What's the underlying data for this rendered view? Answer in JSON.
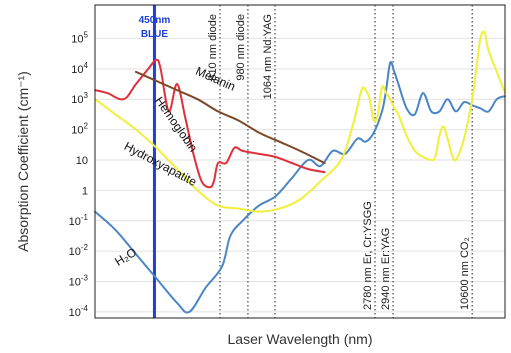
{
  "chart_data": {
    "type": "line",
    "title": "",
    "xlabel": "Laser Wavelength (nm)",
    "ylabel": "Absorption Coefficient (cm⁻¹)",
    "y_scale": "log",
    "y_ticks": [
      {
        "base": "10",
        "exp": "5"
      },
      {
        "base": "10",
        "exp": "4"
      },
      {
        "base": "10",
        "exp": "3"
      },
      {
        "base": "10",
        "exp": "2"
      },
      {
        "base": "10",
        "exp": ""
      },
      {
        "base": "1",
        "exp": ""
      },
      {
        "base": "10",
        "exp": "-1"
      },
      {
        "base": "10",
        "exp": "-2"
      },
      {
        "base": "10",
        "exp": "-3"
      },
      {
        "base": "10",
        "exp": "-4"
      }
    ],
    "y_tick_values": [
      5,
      4,
      3,
      2,
      1,
      0,
      -1,
      -2,
      -3,
      -4
    ],
    "ylim_log10": [
      -4.2,
      6.1
    ],
    "x_domain": [
      0,
      100
    ],
    "grid": true,
    "blue_line": {
      "x": 14.5,
      "label_lines": [
        "450nm",
        "BLUE"
      ],
      "color": "#1f3fd6"
    },
    "laser_lines": [
      {
        "x": 30.5,
        "label": "810 nm  diode",
        "label_pos": "top"
      },
      {
        "x": 37.3,
        "label": "980 nm diode",
        "label_pos": "top"
      },
      {
        "x": 43.9,
        "label": "1064 nm Nd:YAG",
        "label_pos": "top"
      },
      {
        "x": 68.3,
        "label": "2780 nm Er, Cr:YSGG",
        "label_pos": "bottom"
      },
      {
        "x": 72.7,
        "label": "2940 nm Er:YAG",
        "label_pos": "bottom"
      },
      {
        "x": 92.0,
        "label": "10600 nm CO₂",
        "label_pos": "bottom"
      }
    ],
    "series": [
      {
        "name": "H₂O",
        "color": "#4a86c5",
        "x": [
          0,
          5,
          10,
          15,
          20,
          23,
          27,
          31,
          33,
          36,
          40,
          44,
          48,
          52,
          55,
          58,
          61,
          64,
          66,
          68,
          70,
          71,
          72,
          73,
          74,
          76,
          78,
          80,
          82,
          84,
          86,
          88,
          90,
          92,
          94,
          96,
          98,
          100
        ],
        "y": [
          -0.7,
          -1.3,
          -2.1,
          -2.9,
          -3.7,
          -4.0,
          -3.2,
          -2.5,
          -1.5,
          -1.0,
          -0.5,
          -0.2,
          0.4,
          1.0,
          0.8,
          1.3,
          1.2,
          1.7,
          1.6,
          1.9,
          2.6,
          3.3,
          4.2,
          3.9,
          3.5,
          2.7,
          2.5,
          3.2,
          2.6,
          2.6,
          3.0,
          2.6,
          2.9,
          2.8,
          2.7,
          2.6,
          3.0,
          3.1
        ]
      },
      {
        "name": "Hydroxyapatite",
        "color": "#f2ef3a",
        "x": [
          0,
          5,
          10,
          15,
          20,
          25,
          30,
          35,
          40,
          45,
          50,
          55,
          60,
          63,
          65,
          66,
          67,
          68,
          69,
          70,
          71,
          72,
          73,
          74,
          76,
          78,
          80,
          82,
          83,
          84,
          85,
          86,
          87,
          88,
          90,
          92,
          93,
          94,
          95,
          96,
          98,
          100
        ],
        "y": [
          3.0,
          2.5,
          2.0,
          1.4,
          0.7,
          0.0,
          -0.5,
          -0.6,
          -0.7,
          -0.6,
          -0.3,
          0.3,
          1.0,
          2.2,
          3.3,
          3.3,
          3.0,
          2.3,
          2.5,
          3.4,
          3.2,
          3.0,
          2.7,
          2.5,
          1.8,
          1.3,
          1.1,
          1.0,
          1.1,
          1.8,
          2.1,
          1.7,
          1.2,
          1.0,
          1.7,
          3.0,
          4.0,
          5.0,
          5.2,
          4.6,
          3.9,
          3.2
        ]
      },
      {
        "name": "Hemoglobin",
        "color": "#e0303a",
        "x": [
          0,
          3,
          7,
          10,
          13,
          15,
          16,
          18,
          20,
          22,
          24,
          26,
          28,
          29,
          30,
          32,
          34,
          36,
          40,
          44,
          48,
          52,
          56
        ],
        "y": [
          3.3,
          3.2,
          3.0,
          3.5,
          4.0,
          4.3,
          4.0,
          2.6,
          3.5,
          2.4,
          1.2,
          0.3,
          0.1,
          0.3,
          0.9,
          0.9,
          1.4,
          1.3,
          1.2,
          1.1,
          0.9,
          0.7,
          0.6
        ]
      },
      {
        "name": "Melanin",
        "color": "#7a4a28",
        "x": [
          10,
          15,
          20,
          25,
          30,
          35,
          40,
          45,
          50,
          56
        ],
        "y": [
          3.9,
          3.6,
          3.3,
          3.0,
          2.6,
          2.3,
          1.9,
          1.6,
          1.3,
          0.9
        ]
      }
    ],
    "annotations": [
      {
        "text": "Melanin",
        "x": 29,
        "y": 3.55,
        "rotate": 24
      },
      {
        "text": "Hemoglobin",
        "x": 19,
        "y": 2.1,
        "rotate": 55
      },
      {
        "text": "Hydroxyapatite",
        "x": 15.5,
        "y": 0.75,
        "rotate": 28
      },
      {
        "text": "H₂O",
        "x": 8,
        "y": -2.3,
        "rotate": -32
      }
    ]
  }
}
